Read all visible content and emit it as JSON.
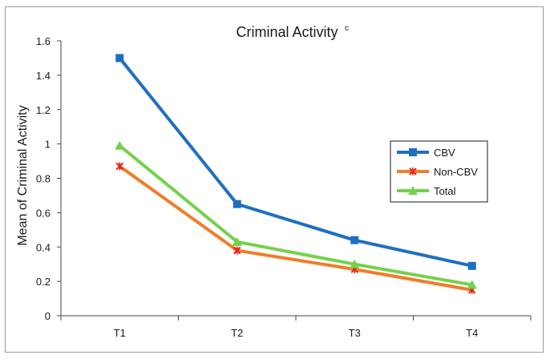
{
  "chart_data": {
    "type": "line",
    "title": "Criminal Activity",
    "title_superscript": "c",
    "xlabel": "",
    "ylabel": "Mean of Criminal Activity",
    "categories": [
      "T1",
      "T2",
      "T3",
      "T4"
    ],
    "ylim": [
      0,
      1.6
    ],
    "yticks": [
      "0",
      "0.2",
      "0.4",
      "0.6",
      "0.8",
      "1",
      "1.2",
      "1.4",
      "1.6"
    ],
    "grid": false,
    "legend_position": "right",
    "series": [
      {
        "name": "CBV",
        "values": [
          1.5,
          0.65,
          0.44,
          0.29
        ],
        "color": "#1f6fbf",
        "marker": "square"
      },
      {
        "name": "Non-CBV",
        "values": [
          0.87,
          0.38,
          0.27,
          0.15
        ],
        "color": "#f07d2a",
        "marker": "x",
        "marker_color": "#e8241c"
      },
      {
        "name": "Total",
        "values": [
          0.99,
          0.43,
          0.3,
          0.18
        ],
        "color": "#74d14a",
        "marker": "triangle"
      }
    ]
  }
}
